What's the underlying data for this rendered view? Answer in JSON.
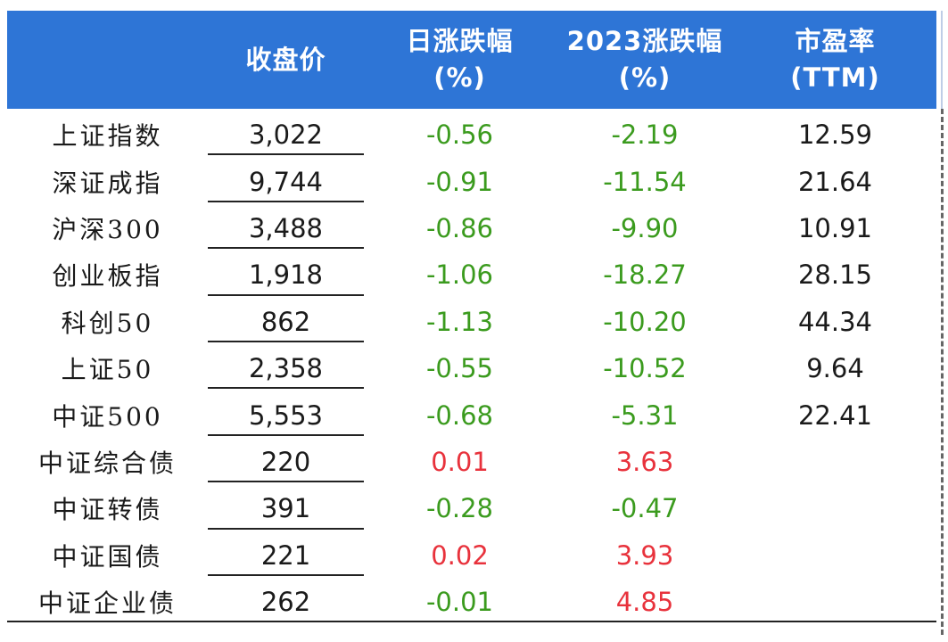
{
  "header": {
    "col0": "",
    "col1": "收盘价",
    "col2_line1": "日涨跌幅",
    "col2_line2": "(%)",
    "col3_line1": "2023涨跌幅",
    "col3_line2": "(%)",
    "col4_line1": "市盈率",
    "col4_line2": "(TTM)"
  },
  "colors": {
    "header_bg": "#2e75d6",
    "negative": "#3b9b1e",
    "positive": "#e8323c"
  },
  "rows": [
    {
      "name": "上证指数",
      "close": "3,022",
      "daily": "-0.56",
      "ytd": "-2.19",
      "pe": "12.59"
    },
    {
      "name": "深证成指",
      "close": "9,744",
      "daily": "-0.91",
      "ytd": "-11.54",
      "pe": "21.64"
    },
    {
      "name": "沪深300",
      "close": "3,488",
      "daily": "-0.86",
      "ytd": "-9.90",
      "pe": "10.91"
    },
    {
      "name": "创业板指",
      "close": "1,918",
      "daily": "-1.06",
      "ytd": "-18.27",
      "pe": "28.15"
    },
    {
      "name": "科创50",
      "close": "862",
      "daily": "-1.13",
      "ytd": "-10.20",
      "pe": "44.34"
    },
    {
      "name": "上证50",
      "close": "2,358",
      "daily": "-0.55",
      "ytd": "-10.52",
      "pe": "9.64"
    },
    {
      "name": "中证500",
      "close": "5,553",
      "daily": "-0.68",
      "ytd": "-5.31",
      "pe": "22.41"
    },
    {
      "name": "中证综合债",
      "close": "220",
      "daily": "0.01",
      "ytd": "3.63",
      "pe": ""
    },
    {
      "name": "中证转债",
      "close": "391",
      "daily": "-0.28",
      "ytd": "-0.47",
      "pe": ""
    },
    {
      "name": "中证国债",
      "close": "221",
      "daily": "0.02",
      "ytd": "3.93",
      "pe": ""
    },
    {
      "name": "中证企业债",
      "close": "262",
      "daily": "-0.01",
      "ytd": "4.85",
      "pe": ""
    }
  ]
}
